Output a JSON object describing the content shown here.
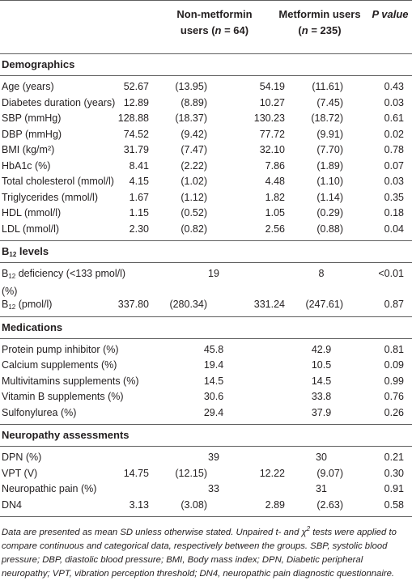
{
  "header": {
    "col1_line1": "Non-metformin",
    "col1_line2_pre": "users (",
    "col1_n": "n",
    "col1_line2_post": " = 64)",
    "col2_line1": "Metformin users",
    "col2_line2_pre": "(",
    "col2_n": "n",
    "col2_line2_post": " = 235)",
    "col3": "P value"
  },
  "sections": {
    "demographics": "Demographics",
    "b12_pre": "B",
    "b12_sub": "12",
    "b12_post": " levels",
    "medications": "Medications",
    "neuropathy": "Neuropathy assessments"
  },
  "demographics": [
    {
      "label": "Age (years)",
      "a": "52.67",
      "b": "(13.95)",
      "c": "54.19",
      "d": "(11.61)",
      "p": "0.43"
    },
    {
      "label": "Diabetes duration (years)",
      "a": "12.89",
      "b": "(8.89)",
      "c": "10.27",
      "d": "(7.45)",
      "p": "0.03"
    },
    {
      "label": "SBP (mmHg)",
      "a": "128.88",
      "b": "(18.37)",
      "c": "130.23",
      "d": "(18.72)",
      "p": "0.61"
    },
    {
      "label": "DBP (mmHg)",
      "a": "74.52",
      "b": "(9.42)",
      "c": "77.72",
      "d": "(9.91)",
      "p": "0.02"
    },
    {
      "label": "BMI (kg/m²)",
      "a": "31.79",
      "b": "(7.47)",
      "c": "32.10",
      "d": "(7.70)",
      "p": "0.78"
    },
    {
      "label": "HbA1c (%)",
      "a": "8.41",
      "b": "(2.22)",
      "c": "7.86",
      "d": "(1.89)",
      "p": "0.07"
    },
    {
      "label": "Total cholesterol (mmol/l)",
      "a": "4.15",
      "b": "(1.02)",
      "c": "4.48",
      "d": "(1.10)",
      "p": "0.03"
    },
    {
      "label": "Triglycerides (mmol/l)",
      "a": "1.67",
      "b": "(1.12)",
      "c": "1.82",
      "d": "(1.14)",
      "p": "0.35"
    },
    {
      "label": "HDL (mmol/l)",
      "a": "1.15",
      "b": "(0.52)",
      "c": "1.05",
      "d": "(0.29)",
      "p": "0.18"
    },
    {
      "label": "LDL (mmol/l)",
      "a": "2.30",
      "b": "(0.82)",
      "c": "2.56",
      "d": "(0.88)",
      "p": "0.04"
    }
  ],
  "b12": {
    "deficiency_label_pre": "B",
    "deficiency_label_sub": "12",
    "deficiency_label_post": " deficiency (<133 pmol/l) (%)",
    "deficiency_a": "19",
    "deficiency_c": "8",
    "deficiency_p": "<0.01",
    "level_label_pre": "B",
    "level_label_sub": "12",
    "level_label_post": " (pmol/l)",
    "level_a": "337.80",
    "level_b": "(280.34)",
    "level_c": "331.24",
    "level_d": "(247.61)",
    "level_p": "0.87"
  },
  "medications": [
    {
      "label": "Protein pump inhibitor (%)",
      "a": "45.8",
      "c": "42.9",
      "p": "0.81"
    },
    {
      "label": "Calcium supplements (%)",
      "a": "19.4",
      "c": "10.5",
      "p": "0.09"
    },
    {
      "label": "Multivitamins supplements (%)",
      "a": "14.5",
      "c": "14.5",
      "p": "0.99"
    },
    {
      "label": "Vitamin B supplements (%)",
      "a": "30.6",
      "c": "33.8",
      "p": "0.76"
    },
    {
      "label": "Sulfonylurea (%)",
      "a": "29.4",
      "c": "37.9",
      "p": "0.26"
    }
  ],
  "neuropathy": {
    "dpn_label": "DPN (%)",
    "dpn_a": "39",
    "dpn_c": "30",
    "dpn_p": "0.21",
    "vpt_label": "VPT (V)",
    "vpt_a": "14.75",
    "vpt_b": "(12.15)",
    "vpt_c": "12.22",
    "vpt_d": "(9.07)",
    "vpt_p": "0.30",
    "pain_label": "Neuropathic pain (%)",
    "pain_a": "33",
    "pain_c": "31",
    "pain_p": "0.91",
    "dn4_label": "DN4",
    "dn4_a": "3.13",
    "dn4_b": "(3.08)",
    "dn4_c": "2.89",
    "dn4_d": "(2.63)",
    "dn4_p": "0.58"
  },
  "footnote": {
    "part1": "Data are presented as mean SD unless otherwise stated. Unpaired t- and χ",
    "sup": "2",
    "part2": " tests were applied to compare continuous and categorical data, respectively between the groups. SBP, systolic blood pressure; DBP, diastolic blood pressure; BMI, Body mass index; DPN, Diabetic peripheral neuropathy; VPT, vibration perception threshold; DN4, neuropathic pain diagnostic questionnaire."
  }
}
